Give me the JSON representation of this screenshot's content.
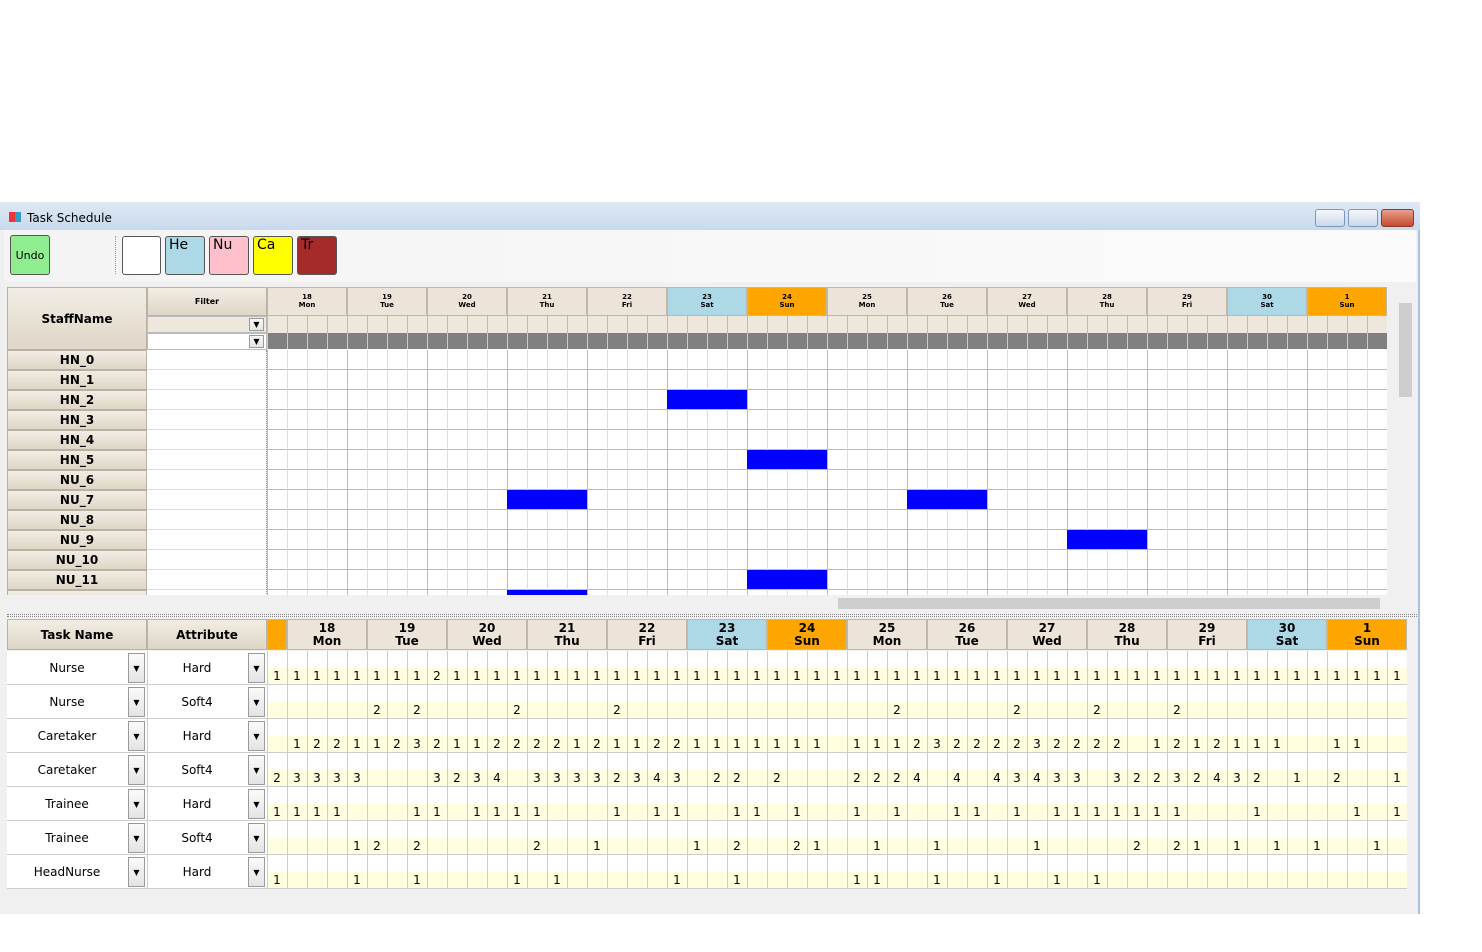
{
  "window": {
    "title": "Task Schedule"
  },
  "toolbar": {
    "undo": "Undo",
    "buttons": [
      "He",
      "Nu",
      "Ca",
      "Tr"
    ]
  },
  "staff_grid": {
    "header": "StaffName",
    "filter": "Filter",
    "staff": [
      "HN_0",
      "HN_1",
      "HN_2",
      "HN_3",
      "HN_4",
      "HN_5",
      "NU_6",
      "NU_7",
      "NU_8",
      "NU_9",
      "NU_10",
      "NU_11"
    ]
  },
  "days": [
    {
      "date": "18",
      "weekday": "Mon",
      "color": "#ece4d8"
    },
    {
      "date": "19",
      "weekday": "Tue",
      "color": "#ece4d8"
    },
    {
      "date": "20",
      "weekday": "Wed",
      "color": "#ece4d8"
    },
    {
      "date": "21",
      "weekday": "Thu",
      "color": "#ece4d8"
    },
    {
      "date": "22",
      "weekday": "Fri",
      "color": "#ece4d8"
    },
    {
      "date": "23",
      "weekday": "Sat",
      "color": "#add8e6"
    },
    {
      "date": "24",
      "weekday": "Sun",
      "color": "#ffa500"
    },
    {
      "date": "25",
      "weekday": "Mon",
      "color": "#ece4d8"
    },
    {
      "date": "26",
      "weekday": "Tue",
      "color": "#ece4d8"
    },
    {
      "date": "27",
      "weekday": "Wed",
      "color": "#ece4d8"
    },
    {
      "date": "28",
      "weekday": "Thu",
      "color": "#ece4d8"
    },
    {
      "date": "29",
      "weekday": "Fri",
      "color": "#ece4d8"
    },
    {
      "date": "30",
      "weekday": "Sat",
      "color": "#add8e6"
    },
    {
      "date": "1",
      "weekday": "Sun",
      "color": "#ffa500"
    }
  ],
  "task_grid": {
    "headers": [
      "Task Name",
      "Attribute"
    ],
    "rows": [
      {
        "task": "Nurse",
        "attribute": "Hard",
        "values": [
          1,
          1,
          1,
          1,
          1,
          1,
          1,
          1,
          2,
          1,
          1,
          1,
          1,
          1,
          1,
          1,
          1,
          1,
          1,
          1,
          1,
          1,
          1,
          1,
          1,
          1,
          1,
          1,
          1,
          1,
          1,
          1,
          1,
          1,
          1,
          1,
          1,
          1,
          1,
          1,
          1,
          1,
          1,
          1,
          1,
          1,
          1,
          1,
          1,
          1,
          1,
          1,
          1,
          1,
          1,
          1,
          1
        ]
      },
      {
        "task": "Nurse",
        "attribute": "Soft4",
        "values": [
          null,
          null,
          null,
          null,
          null,
          2,
          null,
          2,
          null,
          null,
          null,
          null,
          2,
          null,
          null,
          null,
          null,
          2,
          null,
          null,
          null,
          null,
          null,
          null,
          null,
          null,
          null,
          null,
          null,
          null,
          null,
          2,
          null,
          null,
          null,
          null,
          null,
          2,
          null,
          null,
          null,
          2,
          null,
          null,
          null,
          2,
          null,
          null,
          null,
          null,
          null,
          null,
          null,
          null,
          null,
          null,
          null
        ]
      },
      {
        "task": "Caretaker",
        "attribute": "Hard",
        "values": [
          null,
          1,
          2,
          2,
          1,
          1,
          2,
          3,
          2,
          1,
          1,
          2,
          2,
          2,
          2,
          1,
          2,
          1,
          1,
          2,
          2,
          1,
          1,
          1,
          1,
          1,
          1,
          1,
          null,
          1,
          1,
          1,
          2,
          3,
          2,
          2,
          2,
          2,
          3,
          2,
          2,
          2,
          2,
          null,
          1,
          2,
          1,
          2,
          1,
          1,
          1,
          null,
          null,
          1,
          1,
          null,
          null
        ]
      },
      {
        "task": "Caretaker",
        "attribute": "Soft4",
        "values": [
          2,
          3,
          3,
          3,
          3,
          null,
          null,
          null,
          3,
          2,
          3,
          4,
          null,
          3,
          3,
          3,
          3,
          2,
          3,
          4,
          3,
          null,
          2,
          2,
          null,
          2,
          null,
          null,
          null,
          2,
          2,
          2,
          4,
          null,
          4,
          null,
          4,
          3,
          4,
          3,
          3,
          null,
          3,
          2,
          2,
          3,
          2,
          4,
          3,
          2,
          null,
          1,
          null,
          2,
          null,
          null,
          1
        ]
      },
      {
        "task": "Trainee",
        "attribute": "Hard",
        "values": [
          1,
          1,
          1,
          1,
          null,
          null,
          null,
          1,
          1,
          null,
          1,
          1,
          1,
          1,
          null,
          null,
          null,
          1,
          null,
          1,
          1,
          null,
          null,
          1,
          1,
          null,
          1,
          null,
          null,
          1,
          null,
          1,
          null,
          null,
          1,
          1,
          null,
          1,
          null,
          1,
          1,
          1,
          1,
          1,
          1,
          1,
          null,
          null,
          null,
          1,
          null,
          null,
          null,
          null,
          1,
          null,
          1
        ]
      },
      {
        "task": "Trainee",
        "attribute": "Soft4",
        "values": [
          null,
          null,
          null,
          null,
          1,
          2,
          null,
          2,
          null,
          null,
          null,
          null,
          null,
          2,
          null,
          null,
          1,
          null,
          null,
          null,
          null,
          1,
          null,
          2,
          null,
          null,
          2,
          1,
          null,
          null,
          1,
          null,
          null,
          1,
          null,
          null,
          null,
          null,
          1,
          null,
          null,
          null,
          null,
          2,
          null,
          2,
          1,
          null,
          1,
          null,
          1,
          null,
          1,
          null,
          null,
          1,
          null
        ]
      },
      {
        "task": "HeadNurse",
        "attribute": "Hard",
        "values": [
          1,
          null,
          null,
          null,
          1,
          null,
          null,
          1,
          null,
          null,
          null,
          null,
          1,
          null,
          1,
          null,
          null,
          null,
          null,
          null,
          1,
          null,
          null,
          1,
          null,
          null,
          null,
          null,
          null,
          1,
          1,
          null,
          null,
          1,
          null,
          null,
          1,
          null,
          null,
          1,
          null,
          1,
          null,
          null,
          null,
          null,
          null,
          null,
          null,
          null,
          null,
          null,
          null,
          null,
          null,
          null,
          null
        ]
      }
    ]
  }
}
